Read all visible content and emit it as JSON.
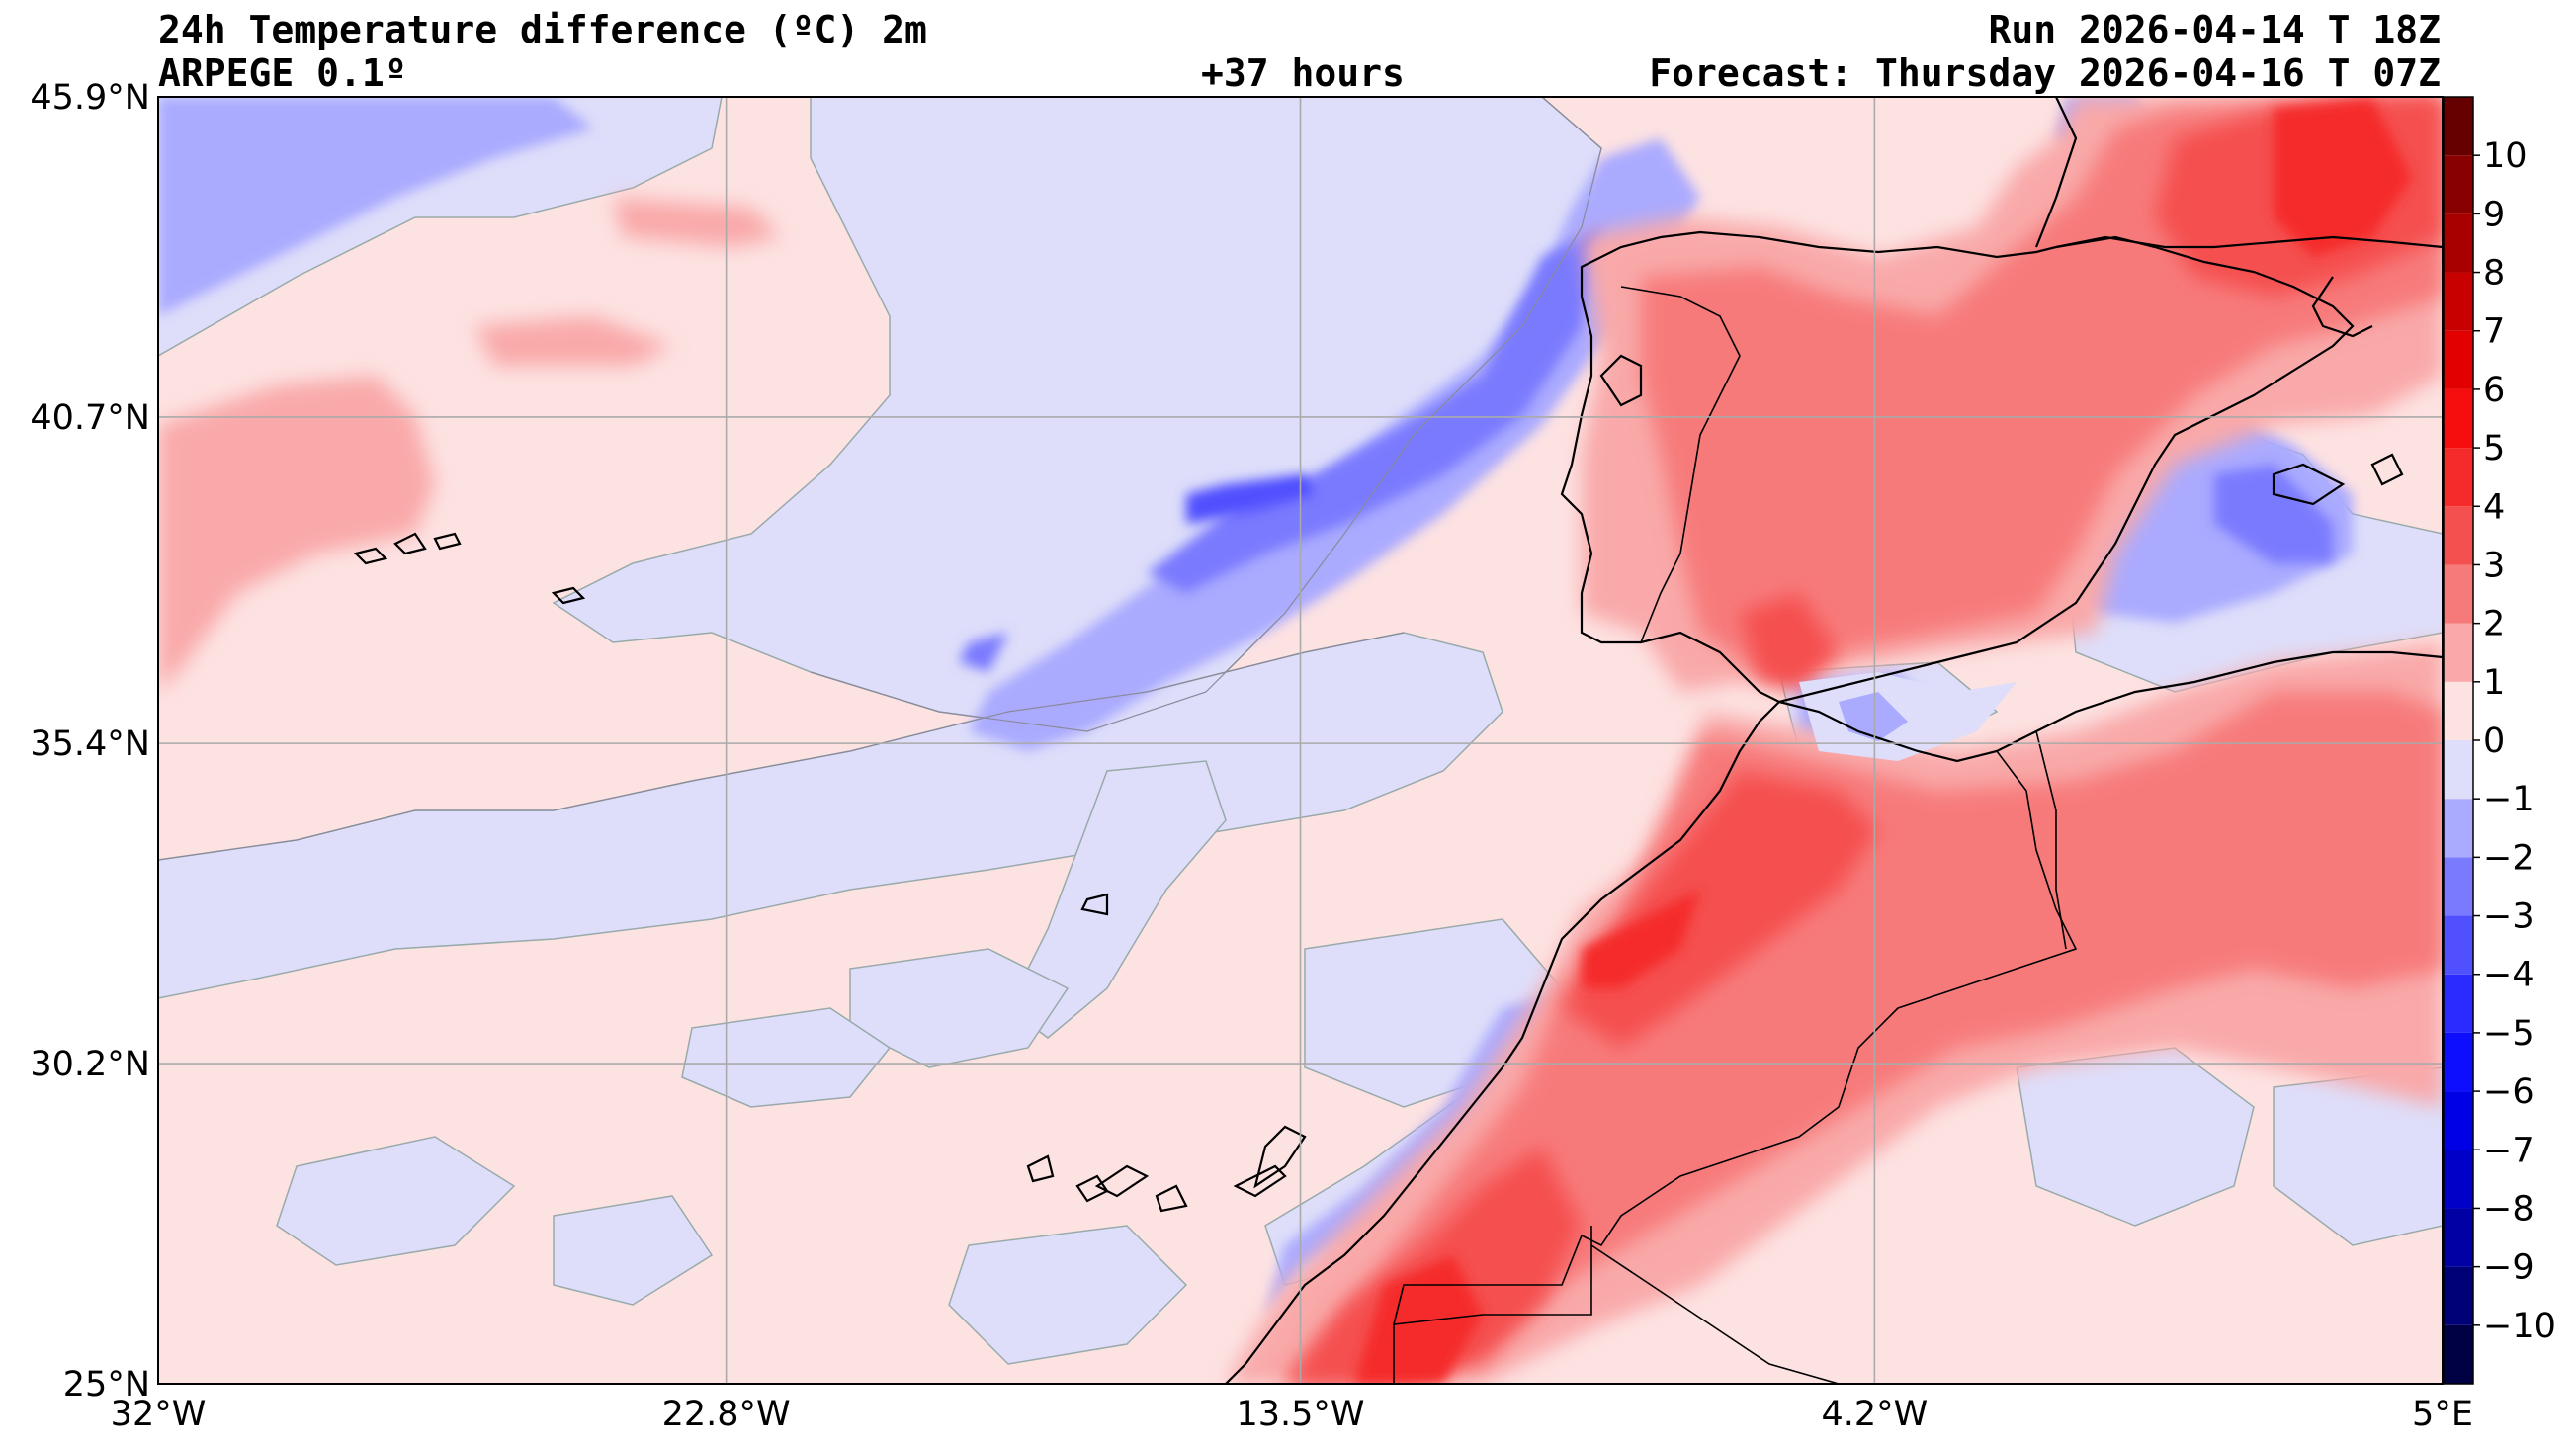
{
  "header": {
    "title": "24h Temperature difference (ºC) 2m",
    "model": "ARPEGE 0.1º",
    "lead_time": "+37 hours",
    "run": "Run 2026-04-14 T 18Z",
    "forecast": "Forecast: Thursday 2026-04-16 T 07Z"
  },
  "map": {
    "lon_range": [
      -32,
      5
    ],
    "lat_range": [
      25,
      45.9
    ],
    "lon_ticks": [
      {
        "value": -32,
        "label": "32°W"
      },
      {
        "value": -22.8,
        "label": "22.8°W"
      },
      {
        "value": -13.5,
        "label": "13.5°W"
      },
      {
        "value": -4.2,
        "label": "4.2°W"
      },
      {
        "value": 5,
        "label": "5°E"
      }
    ],
    "lat_ticks": [
      {
        "value": 45.9,
        "label": "45.9°N"
      },
      {
        "value": 40.7,
        "label": "40.7°N"
      },
      {
        "value": 35.4,
        "label": "35.4°N"
      },
      {
        "value": 30.2,
        "label": "30.2°N"
      },
      {
        "value": 25,
        "label": "25°N"
      }
    ],
    "grid": true
  },
  "colorbar": {
    "levels": [
      -11,
      -10,
      -9,
      -8,
      -7,
      -6,
      -5,
      -4,
      -3,
      -2,
      -1,
      0,
      1,
      2,
      3,
      4,
      5,
      6,
      7,
      8,
      9,
      10,
      11
    ],
    "labels": [
      "−10",
      "−9",
      "−8",
      "−7",
      "−6",
      "−5",
      "−4",
      "−3",
      "−2",
      "−1",
      "0",
      "1",
      "2",
      "3",
      "4",
      "5",
      "6",
      "7",
      "8",
      "9",
      "10"
    ],
    "colors": [
      "#000044",
      "#000077",
      "#0000a4",
      "#0000c8",
      "#0000e6",
      "#0e0eff",
      "#2b2bff",
      "#5050ff",
      "#7a7aff",
      "#aaaaff",
      "#dedefa",
      "#fde2e2",
      "#f9a9a9",
      "#f77a7a",
      "#f55050",
      "#f52b2b",
      "#f60e0e",
      "#e20000",
      "#c80000",
      "#a80000",
      "#880000",
      "#660000"
    ]
  }
}
